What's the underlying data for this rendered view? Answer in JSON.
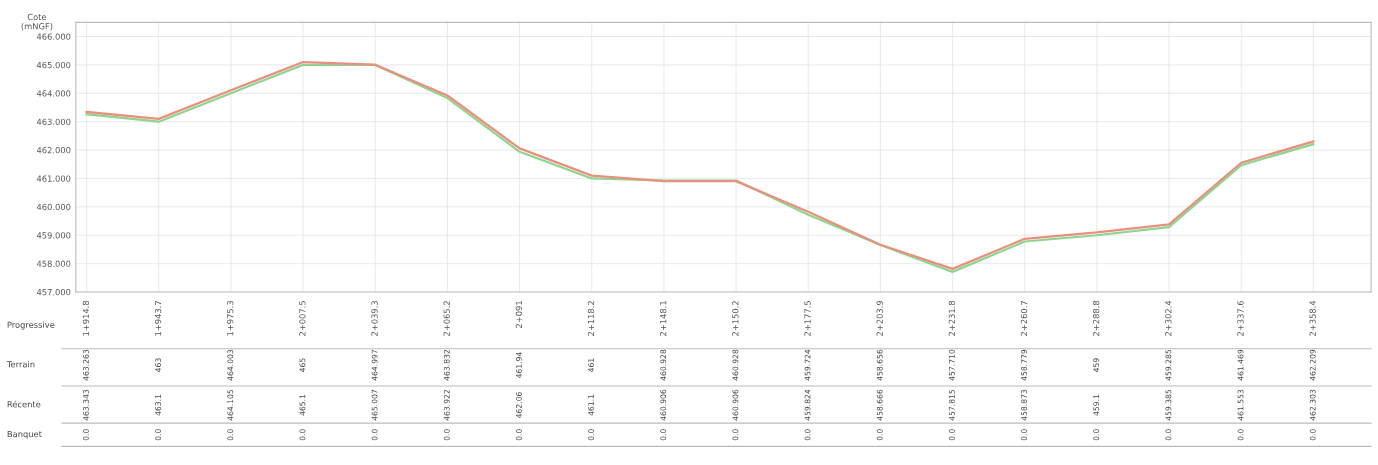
{
  "chart_data": {
    "type": "line",
    "ylabel": "Cote\n(mNGF)",
    "xlabel": "Progressive",
    "categories": [
      "1+914.8",
      "1+943.7",
      "1+975.3",
      "2+007.5",
      "2+039.3",
      "2+065.2",
      "2+091",
      "2+118.2",
      "2+148.1",
      "2+150.2",
      "2+177.5",
      "2+203.9",
      "2+231.8",
      "2+260.7",
      "2+288.8",
      "2+302.4",
      "2+337.6",
      "2+358.4"
    ],
    "ylim": [
      457,
      466.5
    ],
    "yticks": [
      {
        "value": 457,
        "label": "457.000"
      },
      {
        "value": 458,
        "label": "458.000"
      },
      {
        "value": 459,
        "label": "459.000"
      },
      {
        "value": 460,
        "label": "460.000"
      },
      {
        "value": 461,
        "label": "461.000"
      },
      {
        "value": 462,
        "label": "462.000"
      },
      {
        "value": 463,
        "label": "463.000"
      },
      {
        "value": 464,
        "label": "464.000"
      },
      {
        "value": 465,
        "label": "465.000"
      },
      {
        "value": 466,
        "label": "466.000"
      }
    ],
    "grid": true,
    "marker": "none",
    "line_style": "solid",
    "series": [
      {
        "color": "#8fd48f",
        "values": [
          463.263,
          463,
          464.003,
          465,
          464.997,
          463.832,
          461.94,
          461,
          460.928,
          460.928,
          459.724,
          458.656,
          457.71,
          458.779,
          459,
          459.285,
          461.469,
          462.209
        ]
      },
      {
        "color": "#e8907e",
        "values": [
          463.343,
          463.1,
          464.105,
          465.1,
          465.007,
          463.922,
          462.06,
          461.1,
          460.906,
          460.906,
          459.824,
          458.666,
          457.815,
          458.873,
          459.1,
          459.385,
          461.553,
          462.303
        ]
      }
    ],
    "annotations": [
      "Terrain",
      "463.263",
      "463",
      "464.003",
      "465",
      "464.997",
      "463.832",
      "461.94",
      "461",
      "460.928",
      "460.928",
      "459.724",
      "458.656",
      "457.710",
      "458.779",
      "459",
      "459.285",
      "461.469",
      "462.209",
      "Récente",
      "463.343",
      "463.1",
      "464.105",
      "465.1",
      "465.007",
      "463.922",
      "462.06",
      "461.1",
      "460.906",
      "460.906",
      "459.824",
      "458.666",
      "457.815",
      "458.873",
      "459.1",
      "459.385",
      "461.553",
      "462.303",
      "Banquet",
      "0.0",
      "0.0",
      "0.0",
      "0.0",
      "0.0",
      "0.0",
      "0.0",
      "0.0",
      "0.0",
      "0.0",
      "0.0",
      "0.0",
      "0.0",
      "0.0",
      "0.0",
      "0.0",
      "0.0",
      "0.0"
    ]
  }
}
